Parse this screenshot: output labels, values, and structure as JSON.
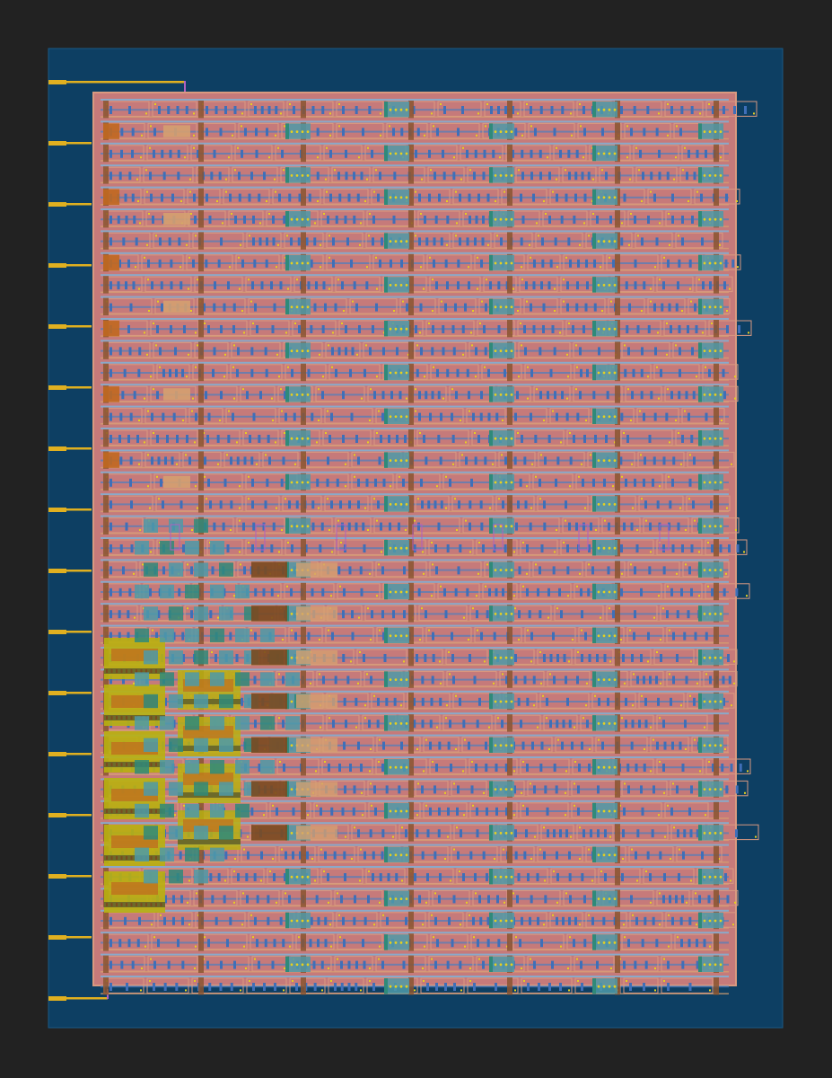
{
  "view": {
    "background": "#222222",
    "die_color": "#0d3f63",
    "die_border": "#1a5a86"
  },
  "layout": {
    "core_color": "#c67a7a",
    "core_border": "#d99a80",
    "row_stripe_color": "#8aa9c9",
    "stripe_blue": "#4a7fc0",
    "via_blue": "#3f6fb8",
    "pin_color": "#e0b020",
    "tap_color": "#8a5530",
    "orange_cell": "#c06820",
    "brown_cell": "#7a4a20",
    "tan_cell": "#d4a070",
    "teal_cell": "#4e9aa8",
    "green_cell": "#2f8a7a",
    "olive_cell": "#b8b010",
    "dark_olive": "#6d6a2a",
    "yellow_dot": "#e6d020",
    "magenta_label": "#b060c0",
    "cell_row_count": 41,
    "io_pin_count": 16
  },
  "io_pins": [
    {
      "name": "pin-1"
    },
    {
      "name": "pin-2"
    },
    {
      "name": "pin-3"
    },
    {
      "name": "pin-4"
    },
    {
      "name": "pin-5"
    },
    {
      "name": "pin-6"
    },
    {
      "name": "pin-7"
    },
    {
      "name": "pin-8"
    },
    {
      "name": "pin-9"
    },
    {
      "name": "pin-10"
    },
    {
      "name": "pin-11"
    },
    {
      "name": "pin-12"
    },
    {
      "name": "pin-13"
    },
    {
      "name": "pin-14"
    },
    {
      "name": "pin-15"
    },
    {
      "name": "pin-16"
    }
  ]
}
